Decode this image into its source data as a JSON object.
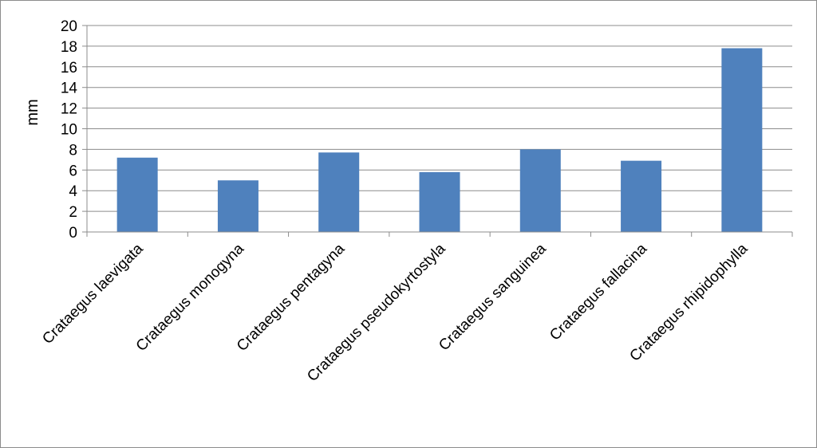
{
  "chart_data": {
    "type": "bar",
    "title": "",
    "xlabel": "",
    "ylabel": "mm",
    "ylim": [
      0,
      20
    ],
    "ytick_step": 2,
    "grid": true,
    "legend": "none",
    "bar_color": "#4f81bd",
    "categories": [
      "Crataegus laevigata",
      "Crataegus monogyna",
      "Crataegus pentagyna",
      "Crataegus pseudokyrtostyla",
      "Crataegus sanguinea",
      "Crataegus fallacina",
      "Crataegus rhipidophylla"
    ],
    "values": [
      7.2,
      5.0,
      7.7,
      5.8,
      8.0,
      6.9,
      17.8
    ]
  }
}
